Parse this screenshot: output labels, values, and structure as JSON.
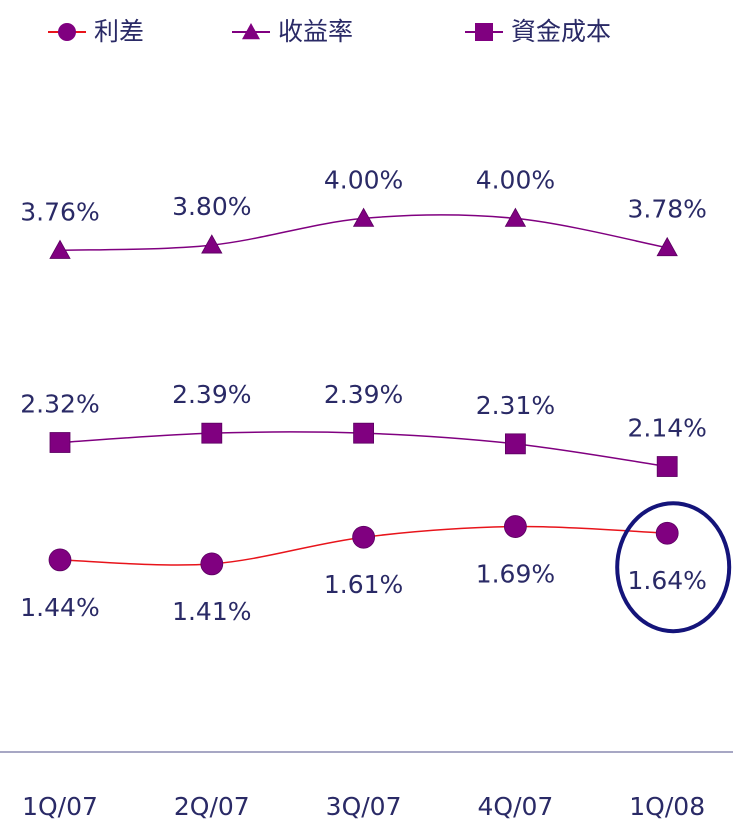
{
  "chart_data": {
    "type": "line",
    "categories": [
      "1Q/07",
      "2Q/07",
      "3Q/07",
      "4Q/07",
      "1Q/08"
    ],
    "series": [
      {
        "name": "利差",
        "color": "#800080",
        "line_color": "#e8141b",
        "marker": "circle",
        "label_position": "below",
        "values": [
          1.44,
          1.41,
          1.61,
          1.69,
          1.64
        ],
        "value_labels": [
          "1.44%",
          "1.41%",
          "1.61%",
          "1.69%",
          "1.64%"
        ]
      },
      {
        "name": "收益率",
        "color": "#800080",
        "line_color": "#800080",
        "marker": "triangle",
        "label_position": "above",
        "values": [
          3.76,
          3.8,
          4.0,
          4.0,
          3.78
        ],
        "value_labels": [
          "3.76%",
          "3.80%",
          "4.00%",
          "4.00%",
          "3.78%"
        ]
      },
      {
        "name": "資金成本",
        "color": "#800080",
        "line_color": "#800080",
        "marker": "square",
        "label_position": "above",
        "values": [
          2.32,
          2.39,
          2.39,
          2.31,
          2.14
        ],
        "value_labels": [
          "2.32%",
          "2.39%",
          "2.39%",
          "2.31%",
          "2.14%"
        ]
      }
    ],
    "ylim": [
      0,
      5
    ],
    "legend": "top",
    "grid": false
  }
}
